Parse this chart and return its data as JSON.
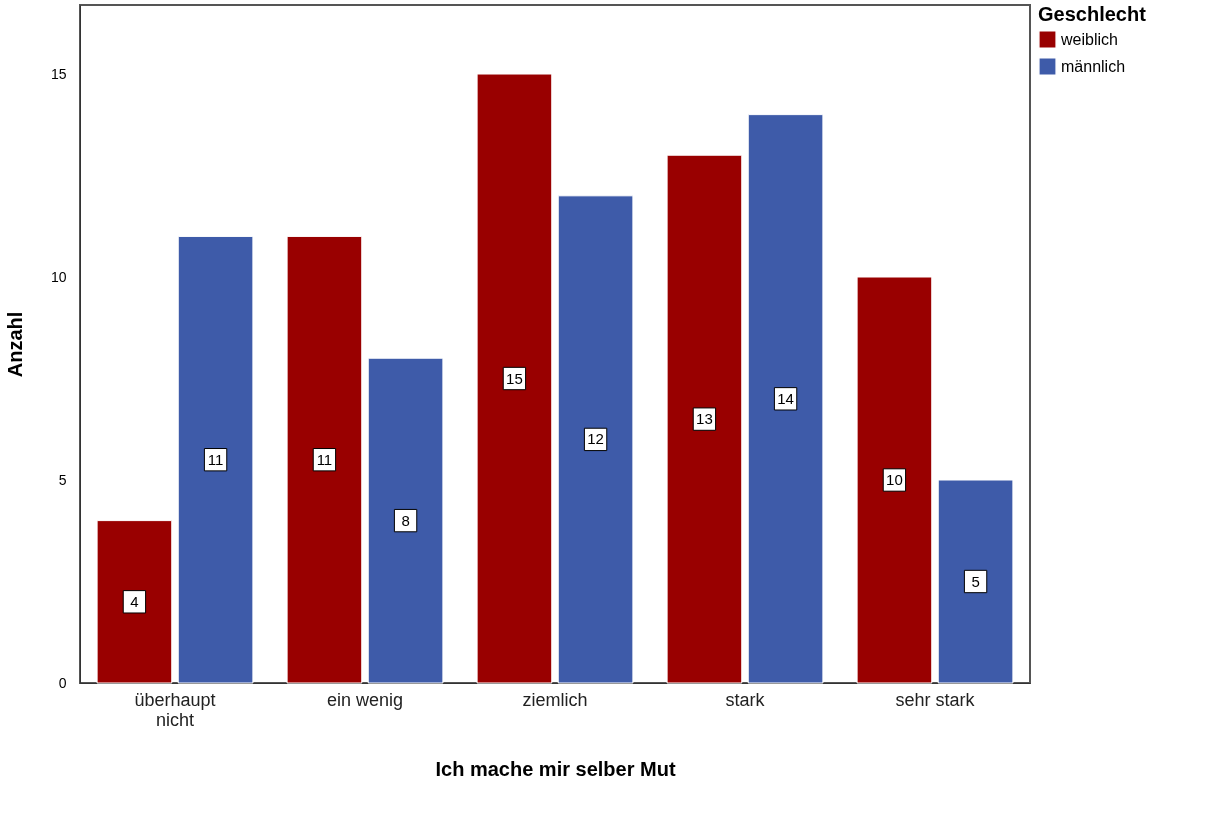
{
  "chart_data": {
    "type": "bar",
    "xlabel": "Ich mache mir selber Mut",
    "ylabel": "Anzahl",
    "legend_title": "Geschlecht",
    "categories": [
      "überhaupt nicht",
      "ein wenig",
      "ziemlich",
      "stark",
      "sehr stark"
    ],
    "series": [
      {
        "name": "weiblich",
        "color": "#990000",
        "values": [
          4,
          11,
          15,
          13,
          10
        ]
      },
      {
        "name": "männlich",
        "color": "#3e5ba9",
        "values": [
          11,
          8,
          12,
          14,
          5
        ]
      }
    ],
    "ylim": [
      0,
      16.7
    ],
    "yticks": [
      0,
      5,
      10,
      15
    ],
    "grid": false,
    "legend": "top right",
    "data_labels": true
  }
}
